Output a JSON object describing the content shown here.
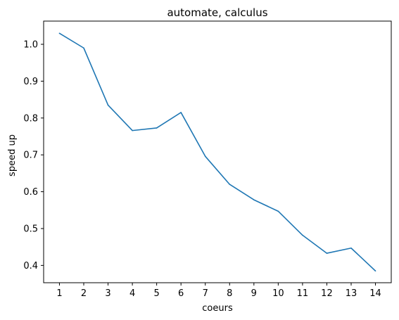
{
  "chart_data": {
    "type": "line",
    "title": "automate, calculus",
    "xlabel": "coeurs",
    "ylabel": "speed up",
    "x": [
      1,
      2,
      3,
      4,
      5,
      6,
      7,
      8,
      9,
      10,
      11,
      12,
      13,
      14
    ],
    "series": [
      {
        "color": "#1f77b4",
        "values": [
          1.03,
          0.99,
          0.835,
          0.766,
          0.773,
          0.815,
          0.696,
          0.62,
          0.578,
          0.547,
          0.482,
          0.433,
          0.447,
          0.385
        ]
      }
    ],
    "xticks": [
      "1",
      "2",
      "3",
      "4",
      "5",
      "6",
      "7",
      "8",
      "9",
      "10",
      "11",
      "12",
      "13",
      "14"
    ],
    "yticks": [
      "0.4",
      "0.5",
      "0.6",
      "0.7",
      "0.8",
      "0.9",
      "1.0"
    ],
    "xlim": [
      0.35,
      14.65
    ],
    "ylim": [
      0.353,
      1.063
    ],
    "grid": false
  }
}
